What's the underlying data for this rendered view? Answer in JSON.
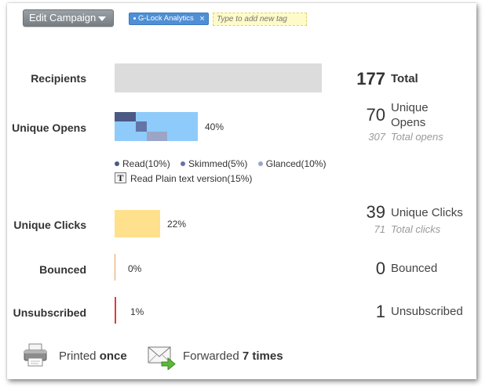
{
  "toolbar": {
    "edit_campaign_label": "Edit Campaign",
    "tag_label": "G-Lock Analytics",
    "tag_remove": "×",
    "tag_input_placeholder": "Type to add new tag"
  },
  "recipients": {
    "label": "Recipients",
    "total": "177",
    "total_label": "Total",
    "fill_fraction": 1.0
  },
  "unique_opens": {
    "label": "Unique Opens",
    "percent_text": "40%",
    "count": "70",
    "count_label_line1": "Unique",
    "count_label_line2": "Opens",
    "total_opens": "307",
    "total_opens_label": "Total opens",
    "breakdown": [
      {
        "name": "Read(10%)",
        "color": "#4b5a85",
        "percent": 10
      },
      {
        "name": "Skimmed(5%)",
        "color": "#6474a6",
        "percent": 5
      },
      {
        "name": "Glanced(10%)",
        "color": "#9aa5c8",
        "percent": 10
      }
    ],
    "plain_text_label": "Read Plain text version(15%)",
    "plain_text_icon": "T",
    "plain_text_percent": 15
  },
  "unique_clicks": {
    "label": "Unique Clicks",
    "percent_text": "22%",
    "count": "39",
    "count_label": "Unique Clicks",
    "total_clicks": "71",
    "total_clicks_label": "Total clicks"
  },
  "bounced": {
    "label": "Bounced",
    "percent_text": "0%",
    "count": "0",
    "count_label": "Bounced",
    "color": "#e8a060"
  },
  "unsubscribed": {
    "label": "Unsubscribed",
    "percent_text": "1%",
    "count": "1",
    "count_label": "Unsubscribed",
    "color": "#e23a3a"
  },
  "footer": {
    "printed_prefix": "Printed",
    "printed_value": "once",
    "forwarded_prefix": "Forwarded",
    "forwarded_value": "7 times",
    "printer_icon": "printer-icon",
    "forward_icon": "email-forward-icon"
  },
  "colors": {
    "recipients_bar": "#dcdcdc",
    "opens_bar": "#8ecbfb",
    "clicks_bar": "#ffe08c",
    "button_gray": "#878e93",
    "tag_blue": "#4f8fd6"
  }
}
